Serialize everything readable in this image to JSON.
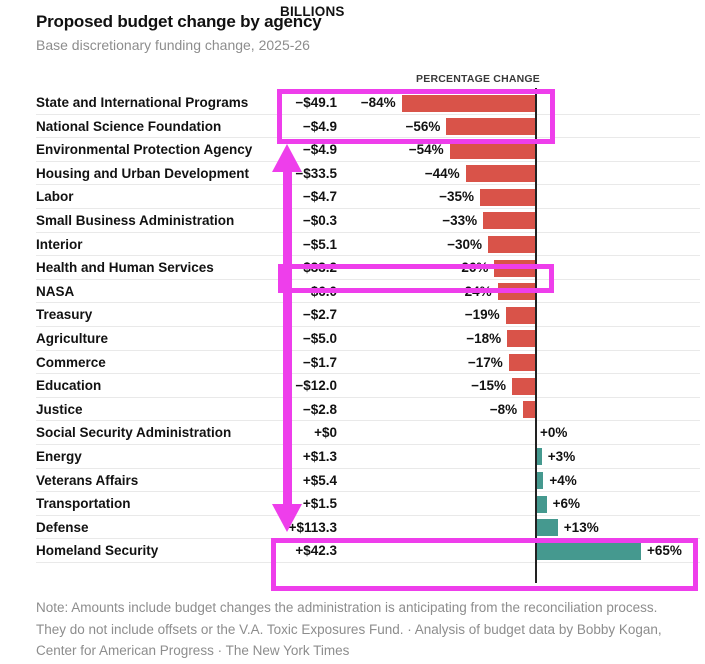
{
  "chart_data": {
    "type": "bar",
    "title": "Proposed budget change by agency",
    "subtitle": "Base discretionary funding change, 2025-26",
    "columns": [
      "BILLIONS",
      "PERCENTAGE CHANGE"
    ],
    "xlim": [
      -84,
      65
    ],
    "orientation": "horizontal",
    "colors": {
      "negative_bar": "#d95349",
      "positive_bar": "#45998f",
      "baseline": "#222222",
      "gridline": "#e9e9e9"
    },
    "rows": [
      {
        "agency": "State and International Programs",
        "billions": "−$49.1",
        "pct_label": "−84%",
        "pct": -84
      },
      {
        "agency": "National Science Foundation",
        "billions": "−$4.9",
        "pct_label": "−56%",
        "pct": -56
      },
      {
        "agency": "Environmental Protection Agency",
        "billions": "−$4.9",
        "pct_label": "−54%",
        "pct": -54
      },
      {
        "agency": "Housing and Urban Development",
        "billions": "−$33.5",
        "pct_label": "−44%",
        "pct": -44
      },
      {
        "agency": "Labor",
        "billions": "−$4.7",
        "pct_label": "−35%",
        "pct": -35
      },
      {
        "agency": "Small Business Administration",
        "billions": "−$0.3",
        "pct_label": "−33%",
        "pct": -33
      },
      {
        "agency": "Interior",
        "billions": "−$5.1",
        "pct_label": "−30%",
        "pct": -30
      },
      {
        "agency": "Health and Human Services",
        "billions": "−$33.2",
        "pct_label": "−26%",
        "pct": -26
      },
      {
        "agency": "NASA",
        "billions": "−$6.0",
        "pct_label": "−24%",
        "pct": -24
      },
      {
        "agency": "Treasury",
        "billions": "−$2.7",
        "pct_label": "−19%",
        "pct": -19
      },
      {
        "agency": "Agriculture",
        "billions": "−$5.0",
        "pct_label": "−18%",
        "pct": -18
      },
      {
        "agency": "Commerce",
        "billions": "−$1.7",
        "pct_label": "−17%",
        "pct": -17
      },
      {
        "agency": "Education",
        "billions": "−$12.0",
        "pct_label": "−15%",
        "pct": -15
      },
      {
        "agency": "Justice",
        "billions": "−$2.8",
        "pct_label": "−8%",
        "pct": -8
      },
      {
        "agency": "Social Security Administration",
        "billions": "+$0",
        "pct_label": "+0%",
        "pct": 0
      },
      {
        "agency": "Energy",
        "billions": "+$1.3",
        "pct_label": "+3%",
        "pct": 3
      },
      {
        "agency": "Veterans Affairs",
        "billions": "+$5.4",
        "pct_label": "+4%",
        "pct": 4
      },
      {
        "agency": "Transportation",
        "billions": "+$1.5",
        "pct_label": "+6%",
        "pct": 6
      },
      {
        "agency": "Defense",
        "billions": "+$113.3",
        "pct_label": "+13%",
        "pct": 13
      },
      {
        "agency": "Homeland Security",
        "billions": "+$42.3",
        "pct_label": "+65%",
        "pct": 65
      }
    ],
    "note_lines": [
      "Note: Amounts include budget changes the administration is anticipating from the reconciliation process.",
      "They do not include offsets or the V.A. Toxic Exposures Fund. · Analysis of budget data by Bobby Kogan,",
      "Center for American Progress · The New York Times"
    ]
  },
  "annotations": {
    "color": "#ee3eeb",
    "boxes": [
      {
        "highlights": "State and International Programs and National Science Foundation values and bars"
      },
      {
        "highlights": "Health and Human Services value and bar"
      },
      {
        "highlights": "Defense and Homeland Security rows"
      }
    ],
    "arrow": {
      "type": "vertical double-headed arrow spanning cut agencies list"
    }
  }
}
